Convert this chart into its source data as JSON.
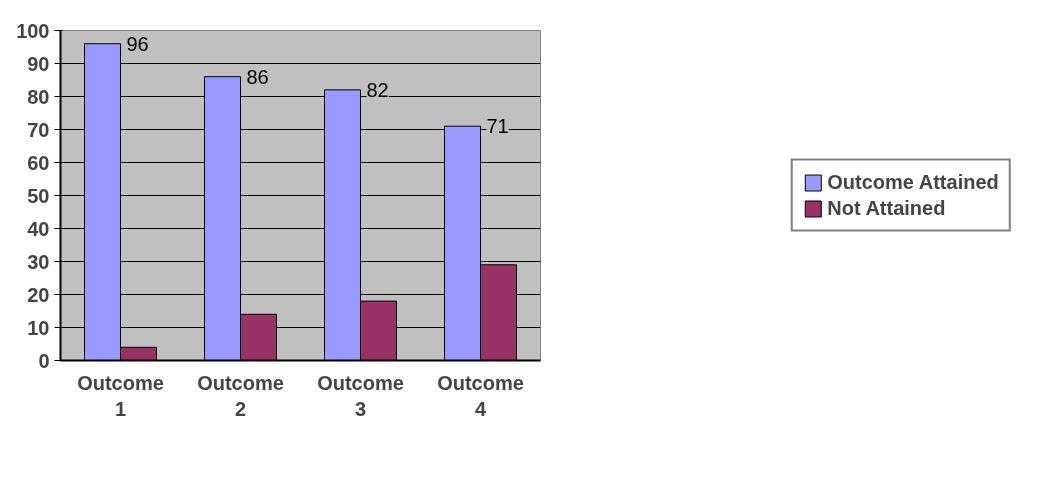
{
  "chart_data": {
    "type": "bar",
    "categories": [
      "Outcome 1",
      "Outcome 2",
      "Outcome 3",
      "Outcome 4"
    ],
    "series": [
      {
        "name": "Outcome Attained",
        "color": "#9999ff",
        "values": [
          96,
          86,
          82,
          71
        ],
        "value_labels": [
          "96",
          "86",
          "82",
          "71"
        ]
      },
      {
        "name": "Not Attained",
        "color": "#993366",
        "values": [
          4,
          14,
          18,
          29
        ]
      }
    ],
    "ylim": [
      0,
      100
    ],
    "yticks": [
      0,
      10,
      20,
      30,
      40,
      50,
      60,
      70,
      80,
      90,
      100
    ],
    "grid": "y",
    "legend": "right"
  }
}
